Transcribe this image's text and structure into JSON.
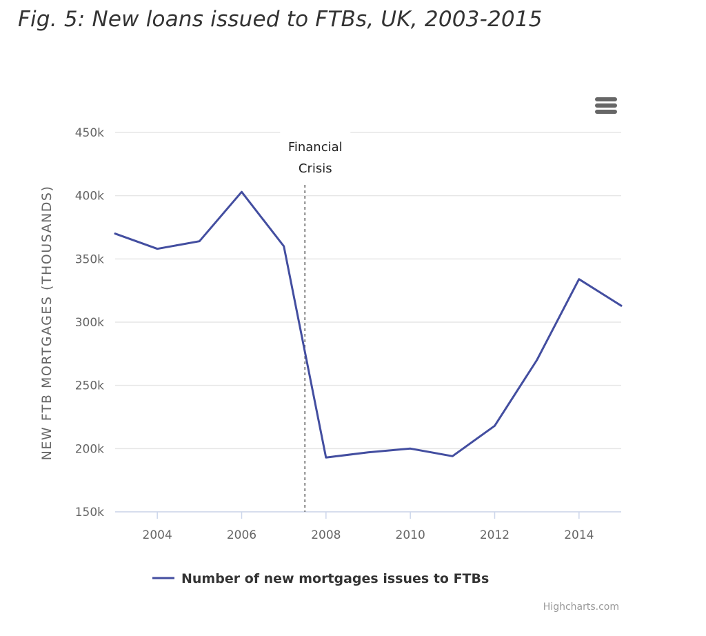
{
  "figure": {
    "title": "Fig. 5: New loans issued to FTBs, UK, 2003-2015"
  },
  "menu": {
    "icon": "hamburger-menu-icon"
  },
  "credits": "Highcharts.com",
  "colors": {
    "series": "#434ea0",
    "grid": "#e6e6e6",
    "axis": "#ccd6eb",
    "plotline": "#555555"
  },
  "chart_data": {
    "type": "line",
    "title": "Fig. 5: New loans issued to FTBs, UK, 2003-2015",
    "xlabel": "",
    "ylabel": "NEW FTB MORTGAGES (THOUSANDS)",
    "xlim": [
      2003,
      2015
    ],
    "ylim": [
      150000,
      450000
    ],
    "x_ticks": [
      2004,
      2006,
      2008,
      2010,
      2012,
      2014
    ],
    "x_tick_labels": [
      "2004",
      "2006",
      "2008",
      "2010",
      "2012",
      "2014"
    ],
    "y_ticks": [
      150000,
      200000,
      250000,
      300000,
      350000,
      400000,
      450000
    ],
    "y_tick_labels": [
      "150k",
      "200k",
      "250k",
      "300k",
      "350k",
      "400k",
      "450k"
    ],
    "grid": true,
    "legend_position": "bottom",
    "series": [
      {
        "name": "Number of new mortgages issues to FTBs",
        "x": [
          2003,
          2004,
          2005,
          2006,
          2007,
          2008,
          2009,
          2010,
          2011,
          2012,
          2013,
          2014,
          2015
        ],
        "values": [
          370000,
          358000,
          364000,
          403000,
          360000,
          193000,
          197000,
          200000,
          194000,
          218000,
          270000,
          334000,
          313000
        ]
      }
    ],
    "annotations": [
      {
        "type": "vertical-line",
        "x": 2007.5,
        "label_lines": [
          "Financial",
          "Crisis"
        ],
        "style": "dashed"
      }
    ]
  }
}
